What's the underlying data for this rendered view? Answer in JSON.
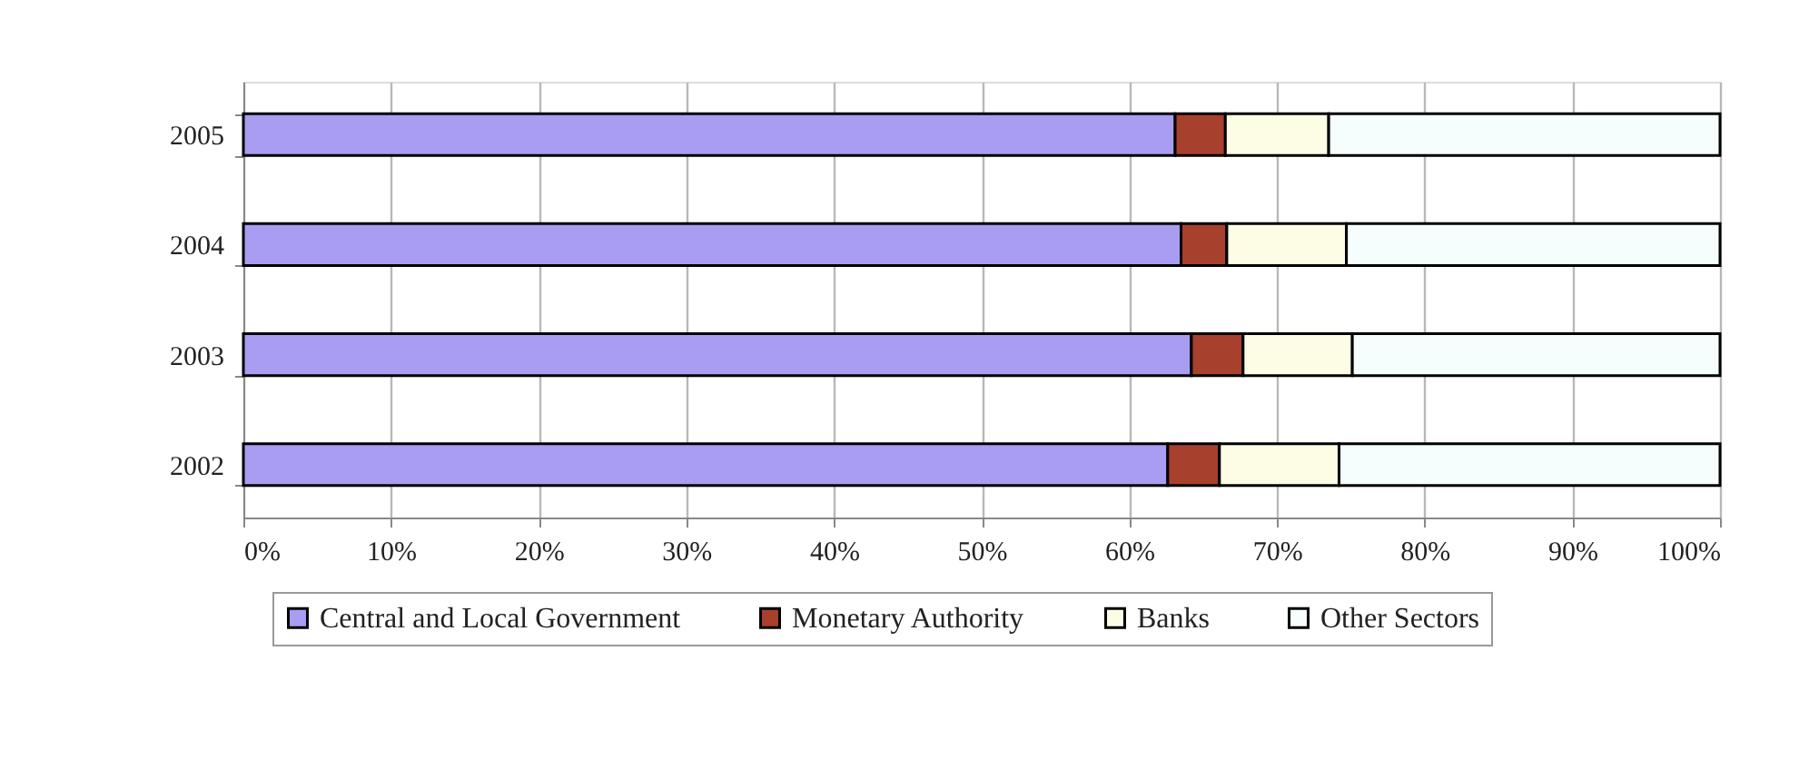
{
  "chart_data": {
    "type": "bar",
    "orientation": "horizontal",
    "stacked": true,
    "categories": [
      "2005",
      "2004",
      "2003",
      "2002"
    ],
    "series": [
      {
        "name": "Central and Local Government",
        "color": "#a99df2",
        "values": [
          63.1,
          63.5,
          64.2,
          62.6
        ]
      },
      {
        "name": "Monetary Authority",
        "color": "#a8402e",
        "values": [
          3.4,
          3.1,
          3.5,
          3.5
        ]
      },
      {
        "name": "Banks",
        "color": "#fdfde6",
        "values": [
          7.0,
          8.1,
          7.4,
          8.1
        ]
      },
      {
        "name": "Other Sectors",
        "color": "#f5fdfd",
        "values": [
          26.5,
          25.3,
          24.9,
          25.8
        ]
      }
    ],
    "xlim": [
      0,
      100
    ],
    "xticks": [
      {
        "value": 0,
        "label": "0%"
      },
      {
        "value": 10,
        "label": "10%"
      },
      {
        "value": 20,
        "label": "20%"
      },
      {
        "value": 30,
        "label": "30%"
      },
      {
        "value": 40,
        "label": "40%"
      },
      {
        "value": 50,
        "label": "50%"
      },
      {
        "value": 60,
        "label": "60%"
      },
      {
        "value": 70,
        "label": "70%"
      },
      {
        "value": 80,
        "label": "80%"
      },
      {
        "value": 90,
        "label": "90%"
      },
      {
        "value": 100,
        "label": "100%"
      }
    ],
    "grid": "x",
    "legend": "bottom"
  }
}
